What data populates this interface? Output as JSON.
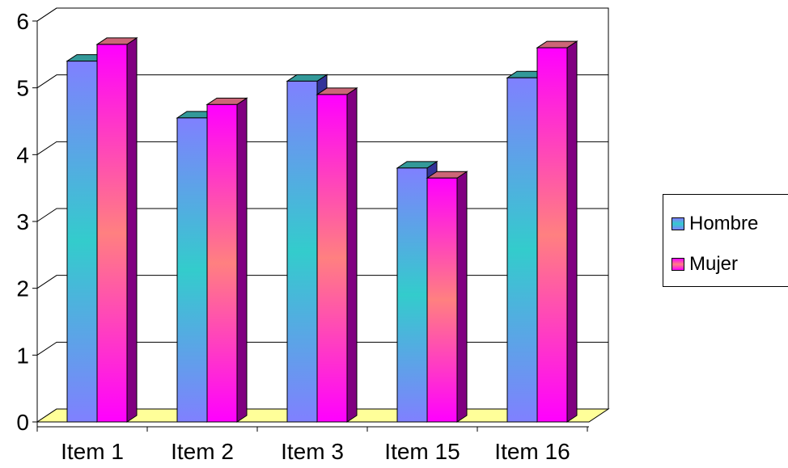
{
  "chart_data": {
    "type": "bar",
    "categories": [
      "Item 1",
      "Item 2",
      "Item 3",
      "Item 15",
      "Item 16"
    ],
    "series": [
      {
        "name": "Hombre",
        "values": [
          5.4,
          4.55,
          5.1,
          3.8,
          5.15
        ]
      },
      {
        "name": "Mujer",
        "values": [
          5.65,
          4.75,
          4.9,
          3.65,
          5.6
        ]
      }
    ],
    "yticks": [
      "0",
      "1",
      "2",
      "3",
      "4",
      "5",
      "6"
    ],
    "ylim": [
      0,
      6
    ],
    "grid": true,
    "legend_position": "right",
    "style": "3d-clustered-column",
    "colors": {
      "hombre_front_edge": "#8080ff",
      "hombre_center": "#33cccc",
      "hombre_top": "#339999",
      "hombre_side": "#333399",
      "mujer_front_edge": "#ff00ff",
      "mujer_center": "#ff8080",
      "mujer_top": "#cc6677",
      "mujer_side": "#800080",
      "floor": "#ffff99"
    }
  },
  "legend": {
    "items": [
      {
        "label": "Hombre"
      },
      {
        "label": "Mujer"
      }
    ]
  }
}
